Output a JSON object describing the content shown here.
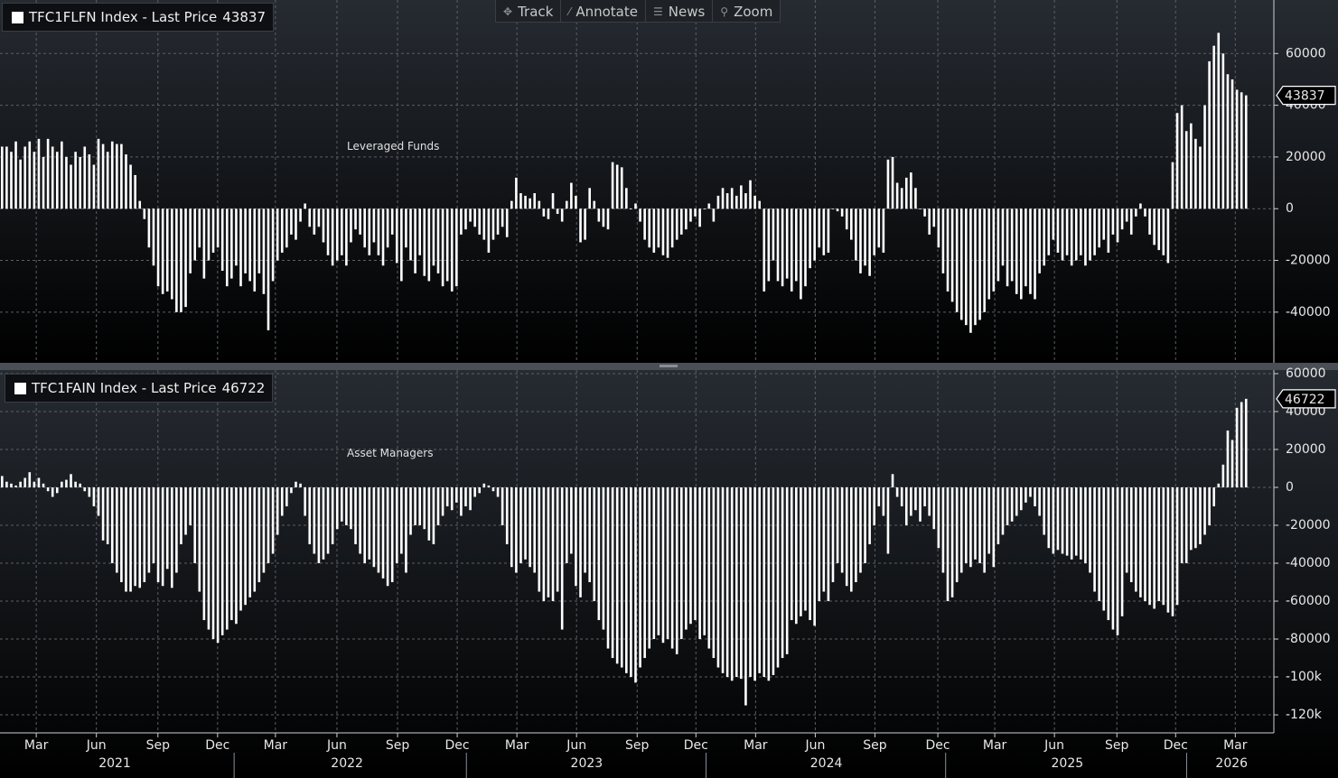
{
  "toolbar": [
    "Track",
    "Annotate",
    "News",
    "Zoom"
  ],
  "chart_data": [
    {
      "type": "bar",
      "title": "TFC1FLFN Index - Last Price",
      "last_price": 43837,
      "annotation": "Leveraged Funds",
      "color": "#ffffff",
      "xlim": [
        0,
        277.5
      ],
      "ylim": [
        -59600,
        80700
      ],
      "yticks": [
        -40000,
        -20000,
        0,
        20000,
        40000,
        60000
      ],
      "grid": true,
      "values": [
        24000,
        24000,
        22000,
        26000,
        19000,
        24000,
        26000,
        22000,
        27000,
        20000,
        27000,
        24000,
        22000,
        26000,
        20000,
        17000,
        22000,
        20000,
        24000,
        21000,
        17000,
        27000,
        25000,
        22000,
        26000,
        25000,
        25000,
        21000,
        17000,
        13000,
        3000,
        -4000,
        -15000,
        -22000,
        -30000,
        -33000,
        -32000,
        -35000,
        -40000,
        -40000,
        -38000,
        -25000,
        -20000,
        -15000,
        -27000,
        -20000,
        -17000,
        -15000,
        -24000,
        -30000,
        -27000,
        -22000,
        -30000,
        -25000,
        -28000,
        -32000,
        -25000,
        -33000,
        -47000,
        -28000,
        -20000,
        -17000,
        -15000,
        -10000,
        -12000,
        -5000,
        2000,
        -7000,
        -10000,
        -7000,
        -13000,
        -18000,
        -22000,
        -20000,
        -18000,
        -22000,
        -13000,
        -8000,
        -10000,
        -15000,
        -18000,
        -13000,
        -18000,
        -22000,
        -15000,
        -10000,
        -21000,
        -28000,
        -15000,
        -20000,
        -25000,
        -18000,
        -26000,
        -28000,
        -22000,
        -25000,
        -30000,
        -28000,
        -32000,
        -30000,
        -10000,
        -8000,
        -5000,
        -7000,
        -10000,
        -12000,
        -17000,
        -12000,
        -10000,
        -7000,
        -11000,
        3000,
        12000,
        6000,
        5000,
        4000,
        6000,
        3000,
        -3000,
        -4000,
        6000,
        -2000,
        -5000,
        3000,
        10000,
        5000,
        -13000,
        -12000,
        8000,
        3000,
        -5000,
        -7000,
        -8000,
        18000,
        17000,
        16000,
        8000,
        0,
        2000,
        -5000,
        -12000,
        -15000,
        -17000,
        -15000,
        -18000,
        -19000,
        -15000,
        -12000,
        -10000,
        -8000,
        -5000,
        -3000,
        -7000,
        0,
        2000,
        -5000,
        5000,
        8000,
        6000,
        8000,
        5000,
        9000,
        6000,
        11000,
        5000,
        3000,
        -32000,
        -28000,
        -20000,
        -28000,
        -30000,
        -27000,
        -32000,
        -28000,
        -35000,
        -30000,
        -23000,
        -20000,
        -15000,
        -18000,
        -17000,
        0,
        -1000,
        -3000,
        -8000,
        -12000,
        -20000,
        -25000,
        -22000,
        -26000,
        -18000,
        -15000,
        -17000,
        19000,
        20000,
        10000,
        8000,
        12000,
        14000,
        8000,
        0,
        -3000,
        -10000,
        -7000,
        -15000,
        -25000,
        -32000,
        -36000,
        -40000,
        -43000,
        -45000,
        -48000,
        -45000,
        -43000,
        -40000,
        -35000,
        -32000,
        -28000,
        -22000,
        -30000,
        -28000,
        -33000,
        -35000,
        -30000,
        -33000,
        -35000,
        -25000,
        -22000,
        -18000,
        -12000,
        -17000,
        -20000,
        -18000,
        -22000,
        -20000,
        -18000,
        -22000,
        -20000,
        -18000,
        -15000,
        -12000,
        -17000,
        -10000,
        -13000,
        -8000,
        -5000,
        -10000,
        -3000,
        2000,
        -3000,
        -10000,
        -14000,
        -16000,
        -18000,
        -21000,
        18000,
        37000,
        40000,
        30000,
        33000,
        27000,
        24000,
        40000,
        57000,
        63000,
        68000,
        60000,
        52000,
        50000,
        46000,
        45000,
        43837
      ]
    },
    {
      "type": "bar",
      "title": "TFC1FAIN Index - Last Price",
      "last_price": 46722,
      "annotation": "Asset Managers",
      "color": "#ffffff",
      "xlim": [
        0,
        277.5
      ],
      "ylim": [
        -129500,
        61900
      ],
      "yticks": [
        {
          "value": -120000,
          "label": "-120k"
        },
        {
          "value": -100000,
          "label": "-100k"
        },
        -80000,
        -60000,
        -40000,
        -20000,
        0,
        20000,
        40000,
        60000
      ],
      "grid": true,
      "xticks": [
        {
          "value": 7.9,
          "label": "Mar"
        },
        {
          "value": 21,
          "label": "Jun"
        },
        {
          "value": 34.4,
          "label": "Sep"
        },
        {
          "value": 47.4,
          "label": "Dec"
        },
        {
          "value": 60,
          "label": "Mar"
        },
        {
          "value": 73.4,
          "label": "Jun"
        },
        {
          "value": 86.6,
          "label": "Sep"
        },
        {
          "value": 99.6,
          "label": "Dec"
        },
        {
          "value": 112.6,
          "label": "Mar"
        },
        {
          "value": 125.6,
          "label": "Jun"
        },
        {
          "value": 138.8,
          "label": "Sep"
        },
        {
          "value": 151.6,
          "label": "Dec"
        },
        {
          "value": 164.6,
          "label": "Mar"
        },
        {
          "value": 177.6,
          "label": "Jun"
        },
        {
          "value": 190.6,
          "label": "Sep"
        },
        {
          "value": 204.3,
          "label": "Dec"
        },
        {
          "value": 216.7,
          "label": "Mar"
        },
        {
          "value": 229.7,
          "label": "Jun"
        },
        {
          "value": 243.3,
          "label": "Sep"
        },
        {
          "value": 256.1,
          "label": "Dec"
        },
        {
          "value": 269.1,
          "label": "Mar"
        }
      ],
      "year_labels": [
        {
          "value": 25,
          "label": "2021"
        },
        {
          "value": 75.6,
          "label": "2022"
        },
        {
          "value": 127.8,
          "label": "2023"
        },
        {
          "value": 180,
          "label": "2024"
        },
        {
          "value": 232.5,
          "label": "2025"
        },
        {
          "value": 268.3,
          "label": "2026"
        }
      ],
      "values": [
        6000,
        3000,
        2000,
        1000,
        3000,
        5000,
        8000,
        3000,
        5000,
        2000,
        -2000,
        -5000,
        -3000,
        3000,
        4000,
        7000,
        3000,
        2000,
        -2000,
        -5000,
        -10000,
        -15000,
        -28000,
        -30000,
        -40000,
        -45000,
        -50000,
        -55000,
        -55000,
        -52000,
        -53000,
        -50000,
        -45000,
        -40000,
        -50000,
        -52000,
        -43000,
        -53000,
        -45000,
        -30000,
        -25000,
        -20000,
        -40000,
        -55000,
        -70000,
        -75000,
        -80000,
        -82000,
        -78000,
        -75000,
        -70000,
        -72000,
        -65000,
        -62000,
        -58000,
        -55000,
        -50000,
        -45000,
        -40000,
        -35000,
        -25000,
        -15000,
        -10000,
        -3000,
        3000,
        2000,
        -15000,
        -30000,
        -35000,
        -40000,
        -38000,
        -35000,
        -30000,
        -22000,
        -18000,
        -20000,
        -22000,
        -30000,
        -35000,
        -40000,
        -38000,
        -42000,
        -45000,
        -48000,
        -52000,
        -50000,
        -40000,
        -35000,
        -45000,
        -25000,
        -20000,
        -20000,
        -22000,
        -28000,
        -30000,
        -20000,
        -15000,
        -10000,
        -12000,
        -8000,
        -15000,
        -10000,
        -12000,
        -5000,
        -3000,
        2000,
        1000,
        -2000,
        -5000,
        -20000,
        -30000,
        -42000,
        -45000,
        -40000,
        -38000,
        -42000,
        -45000,
        -55000,
        -60000,
        -58000,
        -60000,
        -55000,
        -75000,
        -40000,
        -35000,
        -52000,
        -58000,
        -45000,
        -50000,
        -60000,
        -70000,
        -75000,
        -85000,
        -90000,
        -93000,
        -95000,
        -98000,
        -100000,
        -103000,
        -95000,
        -90000,
        -85000,
        -80000,
        -78000,
        -82000,
        -80000,
        -85000,
        -88000,
        -80000,
        -75000,
        -72000,
        -70000,
        -80000,
        -78000,
        -85000,
        -90000,
        -95000,
        -98000,
        -100000,
        -102000,
        -100000,
        -101000,
        -115000,
        -100000,
        -102000,
        -98000,
        -100000,
        -102000,
        -99000,
        -95000,
        -90000,
        -88000,
        -70000,
        -72000,
        -68000,
        -65000,
        -70000,
        -73000,
        -60000,
        -55000,
        -60000,
        -50000,
        -40000,
        -45000,
        -52000,
        -55000,
        -50000,
        -45000,
        -40000,
        -30000,
        -20000,
        -10000,
        -15000,
        -35000,
        7000,
        -5000,
        -10000,
        -20000,
        -15000,
        -12000,
        -18000,
        -10000,
        -15000,
        -22000,
        -32000,
        -45000,
        -60000,
        -58000,
        -50000,
        -45000,
        -40000,
        -42000,
        -38000,
        -40000,
        -45000,
        -35000,
        -42000,
        -30000,
        -25000,
        -20000,
        -18000,
        -15000,
        -12000,
        -8000,
        -5000,
        -10000,
        -15000,
        -25000,
        -32000,
        -35000,
        -33000,
        -35000,
        -36000,
        -38000,
        -36000,
        -38000,
        -40000,
        -45000,
        -55000,
        -60000,
        -65000,
        -70000,
        -75000,
        -78000,
        -68000,
        -45000,
        -50000,
        -55000,
        -58000,
        -60000,
        -62000,
        -64000,
        -60000,
        -62000,
        -66000,
        -68000,
        -62000,
        -40000,
        -40000,
        -33000,
        -32000,
        -30000,
        -25000,
        -20000,
        -10000,
        2000,
        12000,
        30000,
        25000,
        42000,
        45000,
        46722
      ]
    }
  ]
}
